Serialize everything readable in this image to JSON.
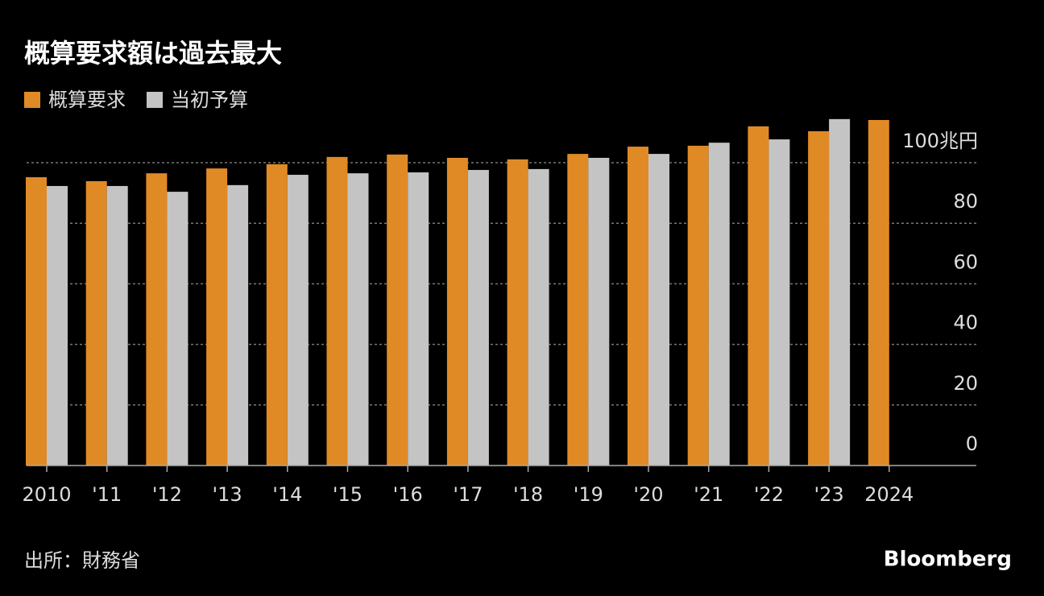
{
  "chart_data": {
    "type": "bar",
    "title": "概算要求額は過去最大",
    "categories": [
      "2010",
      "'11",
      "'12",
      "'13",
      "'14",
      "'15",
      "'16",
      "'17",
      "'18",
      "'19",
      "'20",
      "'21",
      "'22",
      "'23",
      "2024"
    ],
    "series": [
      {
        "name": "概算要求",
        "color": "#e08a26",
        "values": [
          95.2,
          93.9,
          96.5,
          98.1,
          99.5,
          101.9,
          102.7,
          101.6,
          101.1,
          102.9,
          105.3,
          105.6,
          112.0,
          110.4,
          114.1
        ]
      },
      {
        "name": "当初予算",
        "color": "#c4c4c4",
        "values": [
          92.3,
          92.3,
          90.4,
          92.6,
          96.0,
          96.5,
          96.8,
          97.6,
          97.9,
          101.6,
          102.9,
          106.6,
          107.7,
          114.4,
          null
        ]
      }
    ],
    "ylim": [
      0,
      120
    ],
    "yticks": [
      0,
      20,
      40,
      60,
      80,
      {
        "value": 100,
        "label": "100兆円"
      }
    ],
    "grid": true,
    "legend": "top-left",
    "source": "出所：財務省",
    "brand": "Bloomberg"
  }
}
